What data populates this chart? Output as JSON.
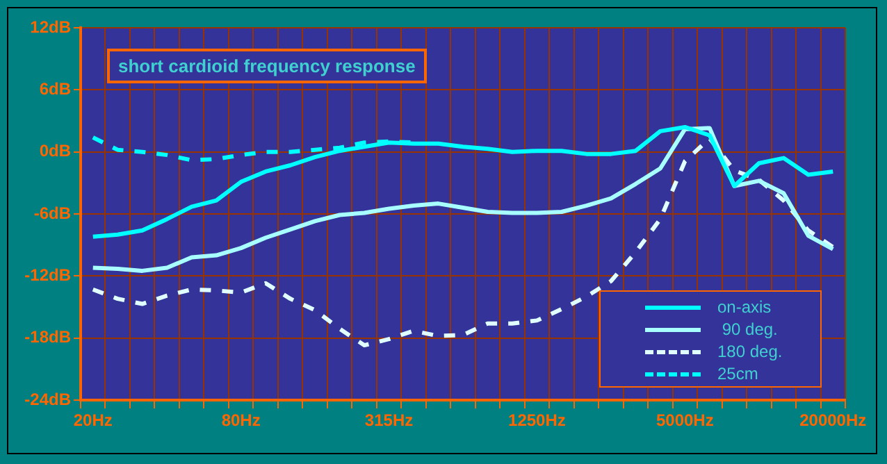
{
  "chart_data": {
    "type": "line",
    "title": "short cardioid frequency response",
    "categories": [
      "20Hz",
      null,
      null,
      null,
      null,
      null,
      "80Hz",
      null,
      null,
      null,
      null,
      null,
      "315Hz",
      null,
      null,
      null,
      null,
      null,
      "1250Hz",
      null,
      null,
      null,
      null,
      null,
      "5000Hz",
      null,
      null,
      null,
      null,
      null,
      "20000Hz"
    ],
    "ylim": [
      -24,
      12
    ],
    "yticks": [
      {
        "value": -24,
        "label": "-24dB"
      },
      {
        "value": -18,
        "label": "-18dB"
      },
      {
        "value": -12,
        "label": "-12dB"
      },
      {
        "value": -6,
        "label": "-6dB"
      },
      {
        "value": 0,
        "label": "0dB"
      },
      {
        "value": 6,
        "label": "6dB"
      },
      {
        "value": 12,
        "label": "12dB"
      }
    ],
    "grid": true,
    "legend": "bottom right",
    "marker": "none",
    "series": [
      {
        "name": "on-axis",
        "color": "#00ffff",
        "line_style": "solid",
        "values": [
          -8.2,
          -8.0,
          -7.6,
          -6.5,
          -5.3,
          -4.7,
          -2.9,
          -1.9,
          -1.3,
          -0.5,
          0.1,
          0.5,
          0.9,
          0.8,
          0.8,
          0.5,
          0.3,
          0,
          0.1,
          0.1,
          -0.2,
          -0.2,
          0.1,
          2.0,
          2.4,
          1.6,
          -3.3,
          -1.1,
          -0.6,
          -2.2,
          -1.9
        ]
      },
      {
        "name": " 90 deg.",
        "color": "#a8ffff",
        "line_style": "solid",
        "values": [
          -11.2,
          -11.3,
          -11.5,
          -11.2,
          -10.2,
          -10.0,
          -9.3,
          -8.3,
          -7.5,
          -6.7,
          -6.1,
          -5.9,
          -5.5,
          -5.2,
          -5.0,
          -5.4,
          -5.8,
          -5.9,
          -5.9,
          -5.8,
          -5.2,
          -4.5,
          -3.1,
          -1.6,
          2.2,
          2.3,
          -3.3,
          -2.8,
          -4.0,
          -8.1,
          -9.4
        ]
      },
      {
        "name": "180 deg.",
        "color": "#e0ffff",
        "line_style": "dashed",
        "values": [
          -13.3,
          -14.2,
          -14.7,
          -13.9,
          -13.3,
          -13.4,
          -13.6,
          -12.7,
          -14.2,
          -15.3,
          -17.1,
          -18.7,
          -18.1,
          -17.3,
          -17.8,
          -17.7,
          -16.6,
          -16.6,
          -16.3,
          -15.2,
          -14.0,
          -12.5,
          -9.7,
          -6.5,
          -0.9,
          1.3,
          -1.8,
          -2.7,
          -4.7,
          -7.6,
          -9.2
        ]
      },
      {
        "name": "25cm",
        "color": "#00ffff",
        "line_style": "dashed",
        "values": [
          1.4,
          0.2,
          0,
          -0.3,
          -0.8,
          -0.7,
          -0.3,
          0,
          0,
          0.2,
          0.4,
          0.9,
          1.0,
          0.9,
          null,
          null,
          null,
          null,
          null,
          null,
          null,
          null,
          null,
          null,
          null,
          null,
          null,
          null,
          null,
          null,
          null
        ]
      }
    ]
  }
}
